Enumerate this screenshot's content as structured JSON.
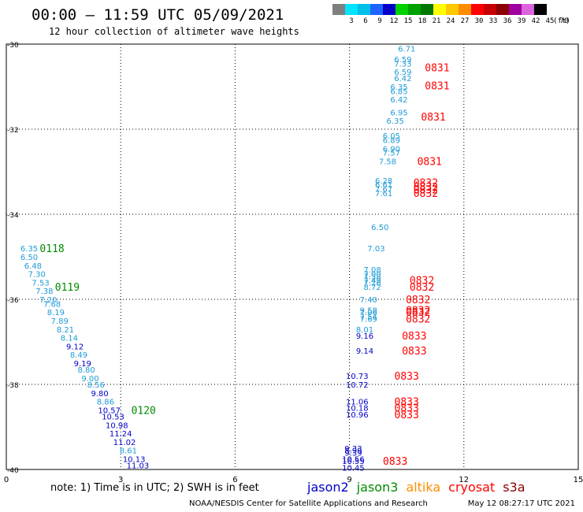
{
  "header": {
    "title": "00:00 – 11:59 UTC 05/09/2021",
    "subtitle": "12 hour collection of altimeter wave heights"
  },
  "color_scale": {
    "unit": "(ft)",
    "bins": [
      {
        "label": "",
        "color": "#7f7f7f"
      },
      {
        "label": "3",
        "color": "#00e5ff"
      },
      {
        "label": "6",
        "color": "#00bfe8"
      },
      {
        "label": "9",
        "color": "#1e64ff"
      },
      {
        "label": "12",
        "color": "#0000c8"
      },
      {
        "label": "15",
        "color": "#00d200"
      },
      {
        "label": "18",
        "color": "#00a000"
      },
      {
        "label": "21",
        "color": "#007800"
      },
      {
        "label": "24",
        "color": "#ffff00"
      },
      {
        "label": "27",
        "color": "#ffc800"
      },
      {
        "label": "30",
        "color": "#ff8c00"
      },
      {
        "label": "33",
        "color": "#ff0000"
      },
      {
        "label": "36",
        "color": "#c80000"
      },
      {
        "label": "39",
        "color": "#8c0000"
      },
      {
        "label": "42",
        "color": "#a000a0"
      },
      {
        "label": "45",
        "color": "#dc64dc"
      },
      {
        "label": "70",
        "color": "#000000"
      }
    ]
  },
  "note": "note: 1) Time is in UTC; 2) SWH is in feet",
  "missions": [
    {
      "name": "jason2",
      "color": "#0000c8"
    },
    {
      "name": "jason3",
      "color": "#008c00"
    },
    {
      "name": "altika",
      "color": "#ff8c00"
    },
    {
      "name": "cryosat",
      "color": "#ff0000"
    },
    {
      "name": "s3a",
      "color": "#8c0000"
    }
  ],
  "footer": {
    "credit": "NOAA/NESDIS Center for Satellite Applications and Research",
    "timestamp": "May 12 08:27:17 UTC 2021"
  },
  "chart_data": {
    "type": "scatter",
    "xlim": [
      0,
      15
    ],
    "ylim": [
      -40,
      -30
    ],
    "x_ticks": [
      "0",
      "3",
      "6",
      "9",
      "12",
      "15"
    ],
    "y_ticks": [
      "-30",
      "-32",
      "-34",
      "-36",
      "-38",
      "-40"
    ],
    "grid": true,
    "series": [
      {
        "points": [
          {
            "x": 0.6,
            "y": -34.8,
            "label": "6.35",
            "color": "#1e9bd7"
          },
          {
            "x": 0.6,
            "y": -35.0,
            "label": "6.50",
            "color": "#1e9bd7"
          },
          {
            "x": 0.7,
            "y": -35.2,
            "label": "6.48",
            "color": "#1e9bd7"
          },
          {
            "x": 0.8,
            "y": -35.4,
            "label": "7.30",
            "color": "#1e9bd7"
          },
          {
            "x": 0.9,
            "y": -35.6,
            "label": "7.53",
            "color": "#1e9bd7"
          },
          {
            "x": 1.0,
            "y": -35.8,
            "label": "7.38",
            "color": "#1e9bd7"
          },
          {
            "x": 1.1,
            "y": -36.0,
            "label": "7.20",
            "color": "#1e9bd7"
          },
          {
            "x": 1.2,
            "y": -36.1,
            "label": "7.68",
            "color": "#1e9bd7"
          },
          {
            "x": 1.3,
            "y": -36.3,
            "label": "8.19",
            "color": "#1e9bd7"
          },
          {
            "x": 1.4,
            "y": -36.5,
            "label": "7.89",
            "color": "#1e9bd7"
          },
          {
            "x": 1.55,
            "y": -36.7,
            "label": "8.21",
            "color": "#1e9bd7"
          },
          {
            "x": 1.65,
            "y": -36.9,
            "label": "8.14",
            "color": "#1e9bd7"
          },
          {
            "x": 1.8,
            "y": -37.1,
            "label": "9.12",
            "color": "#0000c8"
          },
          {
            "x": 1.9,
            "y": -37.3,
            "label": "8.49",
            "color": "#1e9bd7"
          },
          {
            "x": 2.0,
            "y": -37.5,
            "label": "9.19",
            "color": "#0000c8"
          },
          {
            "x": 2.1,
            "y": -37.65,
            "label": "8.80",
            "color": "#1e9bd7"
          },
          {
            "x": 2.2,
            "y": -37.85,
            "label": "9.00",
            "color": "#1e9bd7"
          },
          {
            "x": 2.35,
            "y": -38.0,
            "label": "8.56",
            "color": "#1e9bd7"
          },
          {
            "x": 2.45,
            "y": -38.2,
            "label": "9.80",
            "color": "#0000c8"
          },
          {
            "x": 2.6,
            "y": -38.4,
            "label": "8.86",
            "color": "#1e9bd7"
          },
          {
            "x": 2.7,
            "y": -38.6,
            "label": "10.57",
            "color": "#0000c8"
          },
          {
            "x": 2.8,
            "y": -38.75,
            "label": "10.53",
            "color": "#0000c8"
          },
          {
            "x": 2.9,
            "y": -38.95,
            "label": "10.98",
            "color": "#0000c8"
          },
          {
            "x": 3.0,
            "y": -39.15,
            "label": "11.24",
            "color": "#0000c8"
          },
          {
            "x": 3.1,
            "y": -39.35,
            "label": "11.02",
            "color": "#0000c8"
          },
          {
            "x": 3.2,
            "y": -39.55,
            "label": "8.61",
            "color": "#1e9bd7"
          },
          {
            "x": 3.35,
            "y": -39.75,
            "label": "10.13",
            "color": "#0000c8"
          },
          {
            "x": 3.45,
            "y": -39.9,
            "label": "11.03",
            "color": "#0000c8"
          },
          {
            "x": 10.5,
            "y": -30.1,
            "label": "6.71",
            "color": "#1e9bd7"
          },
          {
            "x": 10.4,
            "y": -30.35,
            "label": "6.59",
            "color": "#1e9bd7"
          },
          {
            "x": 10.4,
            "y": -30.45,
            "label": "7.33",
            "color": "#1e9bd7"
          },
          {
            "x": 10.4,
            "y": -30.65,
            "label": "6.59",
            "color": "#1e9bd7"
          },
          {
            "x": 10.4,
            "y": -30.8,
            "label": "6.42",
            "color": "#1e9bd7"
          },
          {
            "x": 10.3,
            "y": -31.0,
            "label": "6.35",
            "color": "#1e9bd7"
          },
          {
            "x": 10.3,
            "y": -31.1,
            "label": "6.85",
            "color": "#1e9bd7"
          },
          {
            "x": 10.3,
            "y": -31.3,
            "label": "6.42",
            "color": "#1e9bd7"
          },
          {
            "x": 10.3,
            "y": -31.6,
            "label": "6.95",
            "color": "#1e9bd7"
          },
          {
            "x": 10.2,
            "y": -31.8,
            "label": "6.35",
            "color": "#1e9bd7"
          },
          {
            "x": 10.1,
            "y": -32.15,
            "label": "6.05",
            "color": "#1e9bd7"
          },
          {
            "x": 10.1,
            "y": -32.25,
            "label": "6.89",
            "color": "#1e9bd7"
          },
          {
            "x": 10.1,
            "y": -32.45,
            "label": "6.90",
            "color": "#1e9bd7"
          },
          {
            "x": 10.1,
            "y": -32.55,
            "label": "7.57",
            "color": "#1e9bd7"
          },
          {
            "x": 10.0,
            "y": -32.75,
            "label": "7.58",
            "color": "#1e9bd7"
          },
          {
            "x": 9.9,
            "y": -33.2,
            "label": "6.28",
            "color": "#1e9bd7"
          },
          {
            "x": 9.9,
            "y": -33.3,
            "label": "6.61",
            "color": "#1e9bd7"
          },
          {
            "x": 9.9,
            "y": -33.4,
            "label": "7.67",
            "color": "#1e9bd7"
          },
          {
            "x": 9.9,
            "y": -33.5,
            "label": "7.61",
            "color": "#1e9bd7"
          },
          {
            "x": 9.8,
            "y": -34.3,
            "label": "6.50",
            "color": "#1e9bd7"
          },
          {
            "x": 9.7,
            "y": -34.8,
            "label": "7.03",
            "color": "#1e9bd7"
          },
          {
            "x": 9.6,
            "y": -35.3,
            "label": "7.08",
            "color": "#1e9bd7"
          },
          {
            "x": 9.6,
            "y": -35.4,
            "label": "7.00",
            "color": "#1e9bd7"
          },
          {
            "x": 9.6,
            "y": -35.45,
            "label": "7.38",
            "color": "#1e9bd7"
          },
          {
            "x": 9.6,
            "y": -35.55,
            "label": "7.49",
            "color": "#1e9bd7"
          },
          {
            "x": 9.6,
            "y": -35.6,
            "label": "7.26",
            "color": "#1e9bd7"
          },
          {
            "x": 9.6,
            "y": -35.7,
            "label": "8.72",
            "color": "#1e9bd7"
          },
          {
            "x": 9.5,
            "y": -36.0,
            "label": "7.40",
            "color": "#1e9bd7"
          },
          {
            "x": 9.5,
            "y": -36.25,
            "label": "9.58",
            "color": "#1e9bd7"
          },
          {
            "x": 9.5,
            "y": -36.3,
            "label": "7.06",
            "color": "#1e9bd7"
          },
          {
            "x": 9.5,
            "y": -36.4,
            "label": "7.54",
            "color": "#1e9bd7"
          },
          {
            "x": 9.5,
            "y": -36.45,
            "label": "7.69",
            "color": "#1e9bd7"
          },
          {
            "x": 9.4,
            "y": -36.7,
            "label": "8.01",
            "color": "#1e9bd7"
          },
          {
            "x": 9.4,
            "y": -36.85,
            "label": "9.16",
            "color": "#0000c8"
          },
          {
            "x": 9.4,
            "y": -37.2,
            "label": "9.14",
            "color": "#0000c8"
          },
          {
            "x": 9.2,
            "y": -37.8,
            "label": "10.73",
            "color": "#0000c8"
          },
          {
            "x": 9.2,
            "y": -38.0,
            "label": "10.72",
            "color": "#0000c8"
          },
          {
            "x": 9.2,
            "y": -38.4,
            "label": "11.06",
            "color": "#0000c8"
          },
          {
            "x": 9.2,
            "y": -38.55,
            "label": "10.18",
            "color": "#0000c8"
          },
          {
            "x": 9.2,
            "y": -38.7,
            "label": "10.96",
            "color": "#0000c8"
          },
          {
            "x": 9.1,
            "y": -39.5,
            "label": "9.33",
            "color": "#0000c8"
          },
          {
            "x": 9.1,
            "y": -39.55,
            "label": "8.99",
            "color": "#0000c8"
          },
          {
            "x": 9.1,
            "y": -39.6,
            "label": "9.39",
            "color": "#0000c8"
          },
          {
            "x": 9.1,
            "y": -39.75,
            "label": "10.56",
            "color": "#0000c8"
          },
          {
            "x": 9.1,
            "y": -39.8,
            "label": "10.55",
            "color": "#0000c8"
          },
          {
            "x": 9.1,
            "y": -39.95,
            "label": "10.45",
            "color": "#0000c8"
          }
        ]
      }
    ],
    "time_labels": [
      {
        "x": 1.2,
        "y": -34.8,
        "label": "0118",
        "color": "#008c00"
      },
      {
        "x": 1.6,
        "y": -35.7,
        "label": "0119",
        "color": "#008c00"
      },
      {
        "x": 3.6,
        "y": -38.6,
        "label": "0120",
        "color": "#008c00"
      },
      {
        "x": 11.3,
        "y": -30.55,
        "label": "0831",
        "color": "#ff0000"
      },
      {
        "x": 11.3,
        "y": -30.97,
        "label": "0831",
        "color": "#ff0000"
      },
      {
        "x": 11.2,
        "y": -31.7,
        "label": "0831",
        "color": "#ff0000"
      },
      {
        "x": 11.1,
        "y": -32.75,
        "label": "0831",
        "color": "#ff0000"
      },
      {
        "x": 11.0,
        "y": -33.25,
        "label": "0832",
        "color": "#ff0000"
      },
      {
        "x": 11.0,
        "y": -33.35,
        "label": "0832",
        "color": "#ff0000"
      },
      {
        "x": 11.0,
        "y": -33.42,
        "label": "0832",
        "color": "#ff0000"
      },
      {
        "x": 11.0,
        "y": -33.5,
        "label": "0832",
        "color": "#ff0000"
      },
      {
        "x": 10.9,
        "y": -35.55,
        "label": "0832",
        "color": "#ff0000"
      },
      {
        "x": 10.9,
        "y": -35.7,
        "label": "0832",
        "color": "#ff0000"
      },
      {
        "x": 10.8,
        "y": -36.0,
        "label": "0832",
        "color": "#ff0000"
      },
      {
        "x": 10.8,
        "y": -36.25,
        "label": "0832",
        "color": "#ff0000"
      },
      {
        "x": 10.8,
        "y": -36.3,
        "label": "0832",
        "color": "#ff0000"
      },
      {
        "x": 10.8,
        "y": -36.45,
        "label": "0832",
        "color": "#ff0000"
      },
      {
        "x": 10.7,
        "y": -36.85,
        "label": "0833",
        "color": "#ff0000"
      },
      {
        "x": 10.7,
        "y": -37.2,
        "label": "0833",
        "color": "#ff0000"
      },
      {
        "x": 10.5,
        "y": -37.8,
        "label": "0833",
        "color": "#ff0000"
      },
      {
        "x": 10.5,
        "y": -38.4,
        "label": "0833",
        "color": "#ff0000"
      },
      {
        "x": 10.5,
        "y": -38.55,
        "label": "0833",
        "color": "#ff0000"
      },
      {
        "x": 10.5,
        "y": -38.7,
        "label": "0833",
        "color": "#ff0000"
      },
      {
        "x": 10.2,
        "y": -39.8,
        "label": "0833",
        "color": "#ff0000"
      }
    ]
  }
}
